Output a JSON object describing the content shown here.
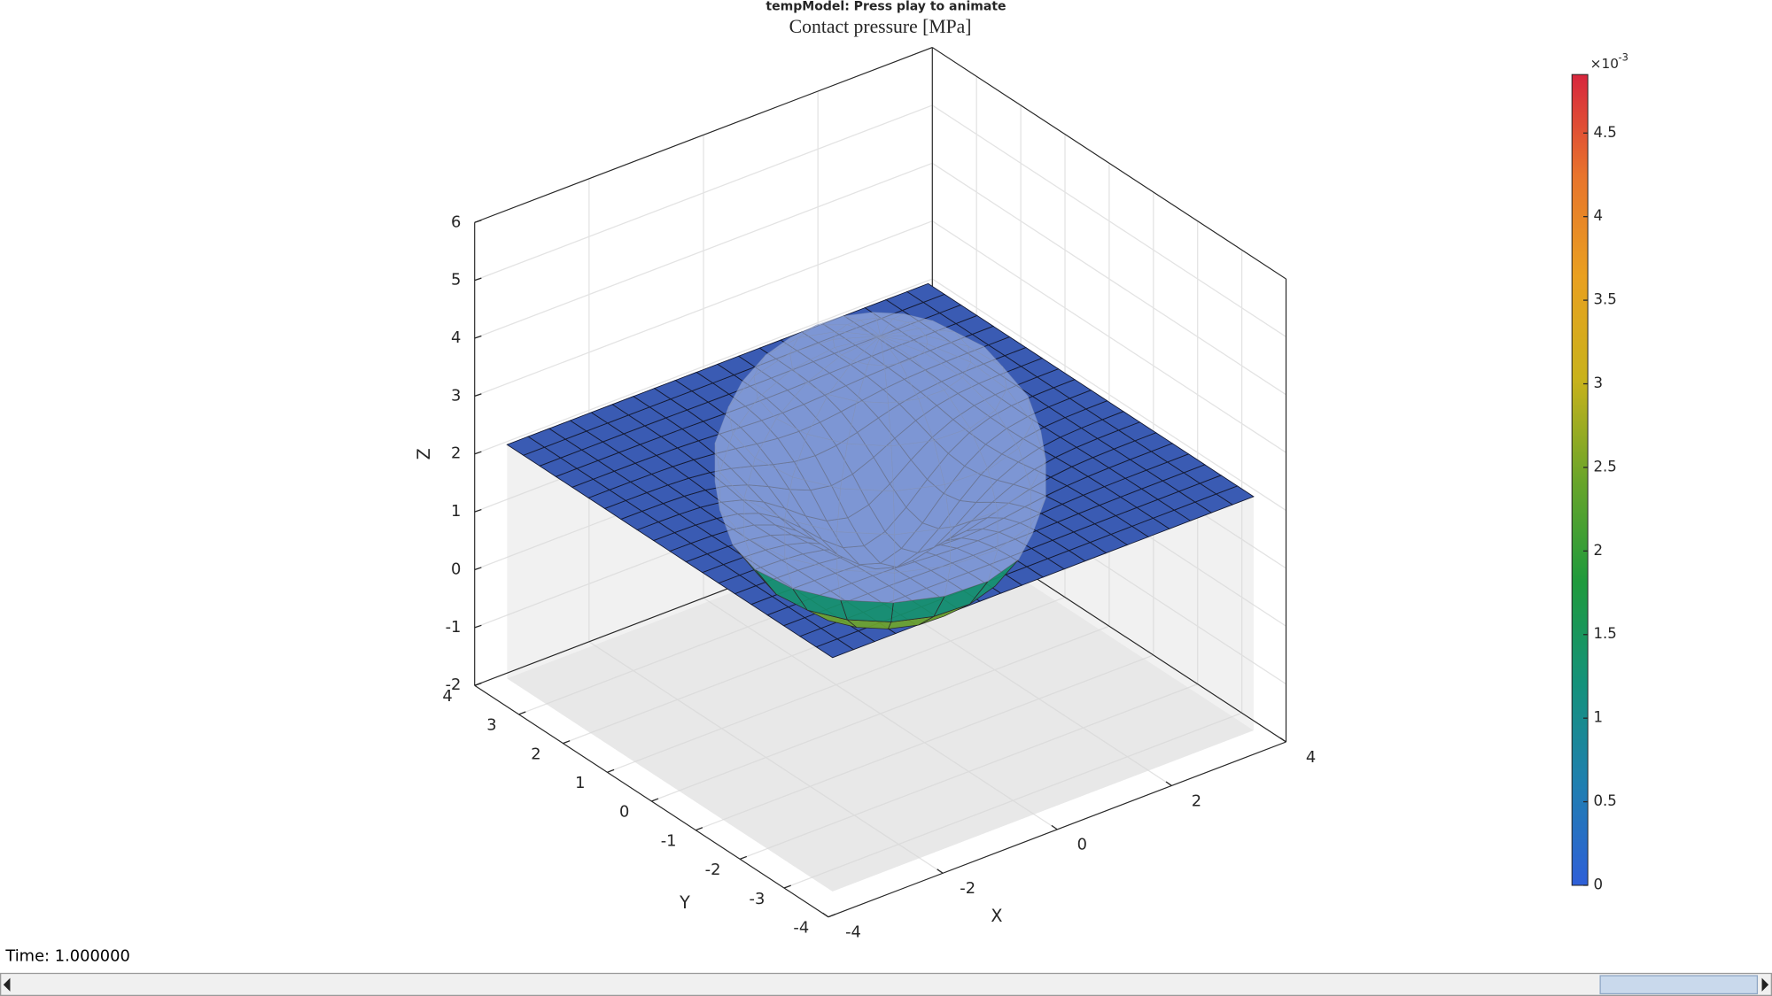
{
  "window": {
    "title": "tempModel: Press play to animate"
  },
  "axes": {
    "title": "Contact pressure [MPa]",
    "xlabel": "X",
    "ylabel": "Y",
    "zlabel": "Z",
    "xlim": [
      -4,
      4
    ],
    "ylim": [
      -4,
      4
    ],
    "zlim": [
      -2,
      6
    ],
    "xticks": [
      -4,
      -2,
      0,
      2,
      4
    ],
    "yticks": [
      -4,
      -3,
      -2,
      -1,
      0,
      1,
      2,
      3,
      4
    ],
    "zticks": [
      -2,
      -1,
      0,
      1,
      2,
      3,
      4,
      5,
      6
    ],
    "grid": true
  },
  "colorbar": {
    "multiplier": "×10",
    "exponent": "-3",
    "clim": [
      0,
      4.85
    ],
    "ticks": [
      0,
      0.5,
      1,
      1.5,
      2,
      2.5,
      3,
      3.5,
      4,
      4.5
    ],
    "colors": [
      "#2f5fd8",
      "#1f7fb0",
      "#14927a",
      "#1f9a3c",
      "#6aa52a",
      "#c9b21b",
      "#e9a020",
      "#e8742c",
      "#d7263d"
    ]
  },
  "status": {
    "time_label": "Time: 1.000000"
  }
}
